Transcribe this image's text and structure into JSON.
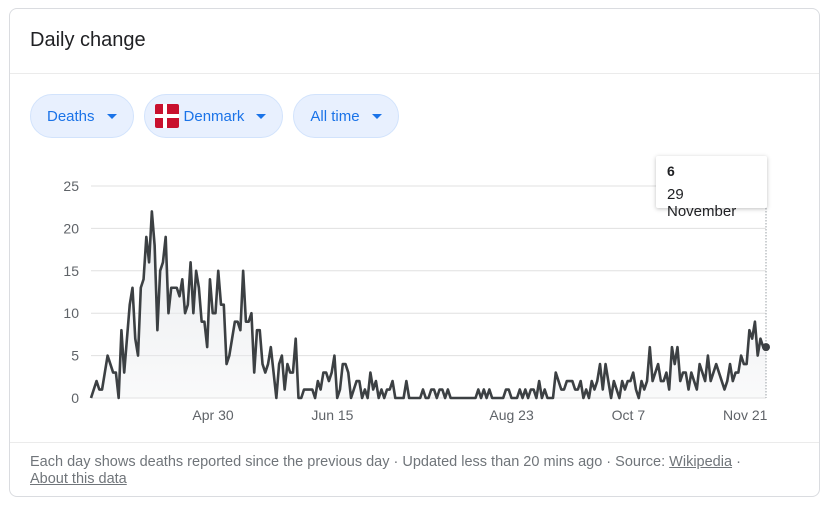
{
  "card": {
    "title": "Daily change"
  },
  "filters": {
    "metric": "Deaths",
    "country": "Denmark",
    "country_flag_color": "#c8102e",
    "range": "All time"
  },
  "tooltip": {
    "value": "6",
    "date": "29 November"
  },
  "footer": {
    "text": "Each day shows deaths reported since the previous day · Updated less than 20 mins ago  ·  Source:",
    "source_link": "Wikipedia",
    "separator": "·",
    "about_link": "About this data"
  },
  "colors": {
    "line": "#3c4043",
    "fill": "#e8eaed",
    "grid": "#e0e0e0",
    "chip_text": "#1a73e8"
  },
  "chart_data": {
    "type": "area",
    "title": "",
    "xlabel": "",
    "ylabel": "",
    "x_start": "2020-03-14",
    "x_end": "2020-11-29",
    "xticks": [
      {
        "label": "Apr 30",
        "date": "2020-04-30"
      },
      {
        "label": "Jun 15",
        "date": "2020-06-15"
      },
      {
        "label": "Aug 23",
        "date": "2020-08-23"
      },
      {
        "label": "Oct 7",
        "date": "2020-10-07"
      },
      {
        "label": "Nov 21",
        "date": "2020-11-21"
      }
    ],
    "yticks": [
      "0",
      "5",
      "10",
      "15",
      "20",
      "25"
    ],
    "ylim": [
      0,
      25
    ],
    "grid": true,
    "values": [
      0,
      1,
      2,
      1,
      1,
      3,
      5,
      4,
      3,
      3,
      0,
      8,
      3,
      7,
      11,
      13,
      7,
      5,
      13,
      14,
      19,
      16,
      22,
      18,
      8,
      15,
      16,
      19,
      10,
      13,
      13,
      13,
      12,
      14,
      10,
      11,
      16,
      10,
      15,
      13,
      9,
      9,
      6,
      14,
      10,
      10,
      15,
      11,
      11,
      4,
      5,
      7,
      9,
      9,
      8,
      15,
      9,
      9,
      10,
      3,
      8,
      8,
      4,
      3,
      4,
      6,
      3,
      0,
      4,
      5,
      1,
      4,
      3,
      3,
      7,
      0,
      0,
      1,
      1,
      1,
      1,
      0,
      2,
      1,
      3,
      3,
      2,
      3,
      5,
      0,
      1,
      4,
      4,
      3,
      0,
      1,
      2,
      2,
      0,
      1,
      0,
      3,
      1,
      2,
      0,
      1,
      0,
      1,
      1,
      2,
      0,
      0,
      0,
      0,
      2,
      0,
      0,
      0,
      0,
      0,
      1,
      0,
      0,
      1,
      1,
      0,
      1,
      1,
      0,
      1,
      0,
      0,
      0,
      0,
      0,
      0,
      0,
      0,
      0,
      0,
      1,
      0,
      1,
      0,
      1,
      0,
      0,
      0,
      0,
      0,
      1,
      1,
      0,
      0,
      0,
      1,
      0,
      1,
      0,
      1,
      1,
      0,
      2,
      0,
      1,
      0,
      0,
      0,
      3,
      2,
      1,
      1,
      2,
      2,
      2,
      1,
      1,
      2,
      0,
      1,
      0,
      2,
      1,
      2,
      4,
      1,
      4,
      2,
      0,
      2,
      1,
      0,
      2,
      1,
      2,
      2,
      3,
      1,
      0,
      2,
      1,
      2,
      6,
      2,
      3,
      4,
      2,
      2,
      3,
      1,
      6,
      4,
      6,
      2,
      3,
      3,
      1,
      3,
      2,
      1,
      4,
      3,
      2,
      5,
      2,
      3,
      4,
      3,
      2,
      1,
      2,
      4,
      2,
      3,
      3,
      5,
      4,
      4,
      8,
      7,
      9,
      5,
      7,
      6,
      6
    ]
  }
}
